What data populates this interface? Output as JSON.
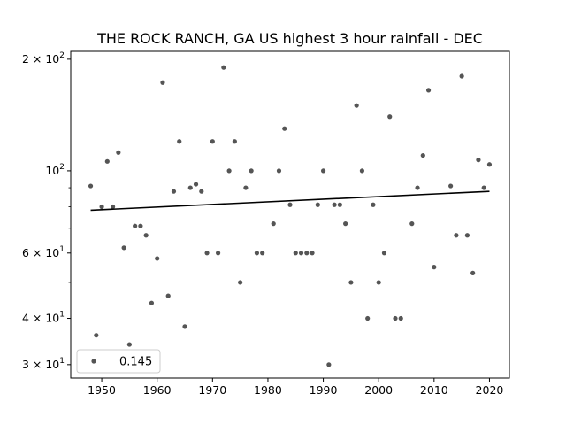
{
  "chart_data": {
    "type": "scatter",
    "title": "THE ROCK RANCH, GA US highest 3 hour rainfall - DEC",
    "xlabel": "",
    "ylabel": "",
    "yscale": "log",
    "xlim": [
      1944.4,
      2023.6
    ],
    "ylim": [
      27.6,
      210
    ],
    "x_ticks": [
      1950,
      1960,
      1970,
      1980,
      1990,
      2000,
      2010,
      2020
    ],
    "y_major_ticks": [
      {
        "value": 30,
        "base": "3",
        "exp": "1"
      },
      {
        "value": 40,
        "base": "4",
        "exp": "1"
      },
      {
        "value": 60,
        "base": "6",
        "exp": "1"
      },
      {
        "value": 100,
        "base": "",
        "exp": "2"
      },
      {
        "value": 200,
        "base": "2",
        "exp": "2"
      }
    ],
    "y_minor_ticks": [
      50,
      70,
      80,
      90
    ],
    "grid": false,
    "legend": {
      "label": "0.145",
      "position": "lower-left"
    },
    "colors": {
      "points": "#555555",
      "trend": "#000000"
    },
    "series": [
      {
        "name": "0.145",
        "x": [
          1948,
          1949,
          1950,
          1951,
          1952,
          1953,
          1954,
          1955,
          1956,
          1957,
          1958,
          1959,
          1960,
          1961,
          1962,
          1963,
          1964,
          1965,
          1966,
          1967,
          1968,
          1969,
          1970,
          1971,
          1972,
          1973,
          1974,
          1975,
          1976,
          1977,
          1978,
          1979,
          1981,
          1982,
          1983,
          1984,
          1985,
          1986,
          1987,
          1988,
          1989,
          1990,
          1991,
          1992,
          1993,
          1994,
          1995,
          1996,
          1997,
          1998,
          1999,
          2000,
          2001,
          2002,
          2003,
          2004,
          2006,
          2007,
          2008,
          2009,
          2010,
          2013,
          2014,
          2015,
          2016,
          2017,
          2018,
          2019,
          2020
        ],
        "y": [
          91,
          36,
          80,
          106,
          80,
          112,
          62,
          34,
          71,
          71,
          67,
          44,
          58,
          173,
          46,
          88,
          120,
          38,
          90,
          92,
          88,
          60,
          120,
          60,
          190,
          100,
          120,
          50,
          90,
          100,
          60,
          60,
          72,
          100,
          130,
          81,
          60,
          60,
          60,
          60,
          81,
          100,
          30,
          81,
          81,
          72,
          50,
          150,
          100,
          40,
          81,
          50,
          60,
          140,
          40,
          40,
          72,
          90,
          110,
          165,
          55,
          91,
          67,
          180,
          67,
          53,
          107,
          90,
          104
        ]
      }
    ],
    "trend": {
      "x": [
        1948,
        2020
      ],
      "y": [
        78.3,
        88.0
      ]
    }
  }
}
